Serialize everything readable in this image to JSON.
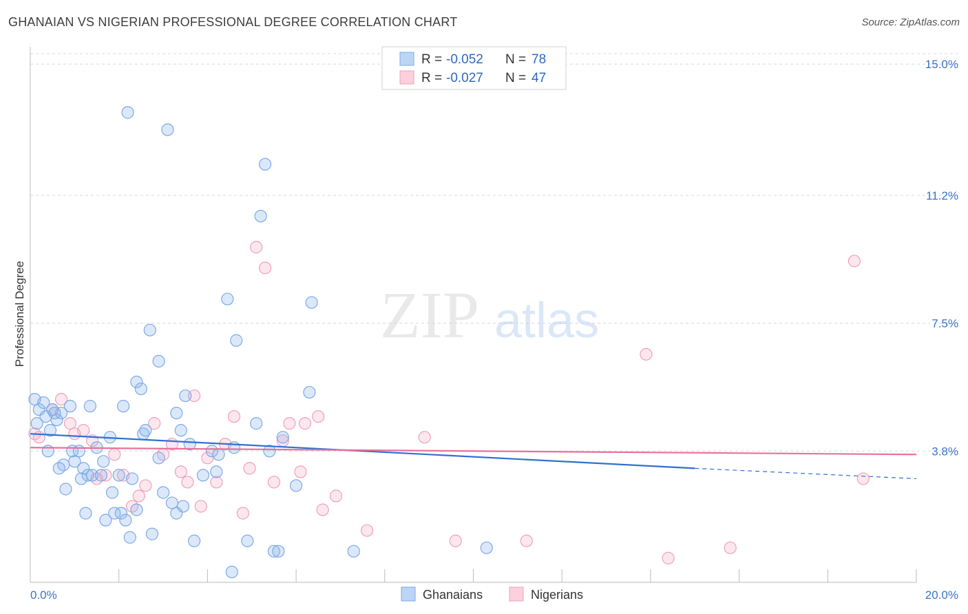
{
  "title": "GHANAIAN VS NIGERIAN PROFESSIONAL DEGREE CORRELATION CHART",
  "source": "Source: ZipAtlas.com",
  "watermark": {
    "zip": "ZIP",
    "atlas": "atlas"
  },
  "legend_top": {
    "rows": [
      {
        "r_label": "R =",
        "r_value": "-0.052",
        "n_label": "N =",
        "n_value": "78"
      },
      {
        "r_label": "R =",
        "r_value": "-0.027",
        "n_label": "N =",
        "n_value": "47"
      }
    ]
  },
  "chart_data": {
    "type": "scatter",
    "title": "GHANAIAN VS NIGERIAN PROFESSIONAL DEGREE CORRELATION CHART",
    "xlabel": "",
    "ylabel": "Professional Degree",
    "xlim": [
      0,
      20
    ],
    "ylim": [
      0,
      15.5
    ],
    "x_tick_labels": [
      {
        "value": 0,
        "label": "0.0%"
      },
      {
        "value": 20,
        "label": "20.0%"
      }
    ],
    "y_tick_labels": [
      {
        "value": 3.8,
        "label": "3.8%"
      },
      {
        "value": 7.5,
        "label": "7.5%"
      },
      {
        "value": 11.2,
        "label": "11.2%"
      },
      {
        "value": 15.0,
        "label": "15.0%"
      }
    ],
    "grid": true,
    "colors": {
      "ghanaians": "#7aaae8",
      "nigerians": "#f0a0b8",
      "ghanaians_line": "#2f6fd0",
      "nigerians_line": "#e8709a",
      "tick_text": "#3b73c9"
    },
    "series": [
      {
        "name": "Ghanaians",
        "r": -0.052,
        "n": 78,
        "trend": {
          "x0": 0,
          "y0": 4.3,
          "x1": 15,
          "y1": 3.3,
          "x_dash_end": 20,
          "y_dash_end": 3.0
        },
        "points": [
          [
            0.1,
            5.3
          ],
          [
            0.2,
            5.0
          ],
          [
            0.3,
            5.2
          ],
          [
            0.35,
            4.8
          ],
          [
            0.4,
            3.8
          ],
          [
            0.45,
            4.4
          ],
          [
            0.5,
            5.0
          ],
          [
            0.6,
            4.7
          ],
          [
            0.7,
            4.9
          ],
          [
            0.75,
            3.4
          ],
          [
            0.8,
            2.7
          ],
          [
            0.9,
            5.1
          ],
          [
            0.95,
            3.8
          ],
          [
            1.0,
            3.5
          ],
          [
            1.1,
            3.8
          ],
          [
            1.2,
            3.3
          ],
          [
            1.25,
            2.0
          ],
          [
            1.3,
            3.1
          ],
          [
            1.35,
            5.1
          ],
          [
            1.4,
            3.1
          ],
          [
            1.5,
            3.9
          ],
          [
            1.6,
            3.1
          ],
          [
            1.65,
            3.5
          ],
          [
            1.7,
            1.8
          ],
          [
            1.8,
            4.2
          ],
          [
            1.85,
            2.6
          ],
          [
            1.9,
            2.0
          ],
          [
            2.0,
            3.1
          ],
          [
            2.05,
            2.0
          ],
          [
            2.1,
            5.1
          ],
          [
            2.15,
            1.8
          ],
          [
            2.2,
            13.6
          ],
          [
            2.25,
            1.3
          ],
          [
            2.4,
            2.1
          ],
          [
            2.4,
            5.8
          ],
          [
            2.5,
            5.6
          ],
          [
            2.55,
            4.3
          ],
          [
            2.6,
            4.4
          ],
          [
            2.7,
            7.3
          ],
          [
            2.75,
            1.4
          ],
          [
            2.9,
            6.4
          ],
          [
            2.9,
            3.6
          ],
          [
            3.0,
            2.6
          ],
          [
            3.1,
            13.1
          ],
          [
            3.2,
            2.3
          ],
          [
            3.3,
            2.0
          ],
          [
            3.3,
            4.9
          ],
          [
            3.4,
            4.4
          ],
          [
            3.45,
            2.2
          ],
          [
            3.5,
            5.4
          ],
          [
            3.6,
            4.0
          ],
          [
            3.7,
            1.2
          ],
          [
            3.9,
            3.1
          ],
          [
            4.1,
            3.8
          ],
          [
            4.2,
            3.2
          ],
          [
            4.25,
            3.7
          ],
          [
            4.45,
            8.2
          ],
          [
            4.55,
            0.3
          ],
          [
            4.6,
            3.9
          ],
          [
            4.65,
            7.0
          ],
          [
            4.9,
            1.2
          ],
          [
            5.1,
            4.6
          ],
          [
            5.2,
            10.6
          ],
          [
            5.3,
            12.1
          ],
          [
            5.4,
            3.8
          ],
          [
            5.5,
            0.9
          ],
          [
            5.6,
            0.9
          ],
          [
            5.7,
            4.2
          ],
          [
            6.0,
            2.8
          ],
          [
            6.3,
            5.5
          ],
          [
            6.35,
            8.1
          ],
          [
            7.3,
            0.9
          ],
          [
            10.3,
            1.0
          ],
          [
            0.15,
            4.6
          ],
          [
            0.55,
            4.9
          ],
          [
            0.65,
            3.3
          ],
          [
            1.15,
            3.0
          ],
          [
            2.3,
            3.0
          ]
        ]
      },
      {
        "name": "Nigerians",
        "r": -0.027,
        "n": 47,
        "trend": {
          "x0": 0,
          "y0": 3.9,
          "x1": 20,
          "y1": 3.7
        },
        "points": [
          [
            0.1,
            4.3
          ],
          [
            0.2,
            4.2
          ],
          [
            0.5,
            5.0
          ],
          [
            0.7,
            5.3
          ],
          [
            0.9,
            4.6
          ],
          [
            1.0,
            4.3
          ],
          [
            1.2,
            4.4
          ],
          [
            1.4,
            4.1
          ],
          [
            1.5,
            3.0
          ],
          [
            1.7,
            3.1
          ],
          [
            1.9,
            3.7
          ],
          [
            2.1,
            3.1
          ],
          [
            2.3,
            2.2
          ],
          [
            2.45,
            2.5
          ],
          [
            2.6,
            2.8
          ],
          [
            2.8,
            4.6
          ],
          [
            3.0,
            3.7
          ],
          [
            3.2,
            4.0
          ],
          [
            3.4,
            3.2
          ],
          [
            3.55,
            2.9
          ],
          [
            3.7,
            5.4
          ],
          [
            3.85,
            2.2
          ],
          [
            4.0,
            3.6
          ],
          [
            4.2,
            2.9
          ],
          [
            4.4,
            4.0
          ],
          [
            4.6,
            4.8
          ],
          [
            4.8,
            2.0
          ],
          [
            4.95,
            3.3
          ],
          [
            5.1,
            9.7
          ],
          [
            5.3,
            9.1
          ],
          [
            5.5,
            2.9
          ],
          [
            5.7,
            4.1
          ],
          [
            5.85,
            4.6
          ],
          [
            6.1,
            3.2
          ],
          [
            6.2,
            4.6
          ],
          [
            6.5,
            4.8
          ],
          [
            6.6,
            2.1
          ],
          [
            6.9,
            2.5
          ],
          [
            7.6,
            1.5
          ],
          [
            8.9,
            4.2
          ],
          [
            9.6,
            1.2
          ],
          [
            11.2,
            1.2
          ],
          [
            13.9,
            6.6
          ],
          [
            14.4,
            0.7
          ],
          [
            15.8,
            1.0
          ],
          [
            18.6,
            9.3
          ],
          [
            18.8,
            3.0
          ]
        ]
      }
    ]
  },
  "bottom_legend": {
    "items": [
      {
        "label": "Ghanaians"
      },
      {
        "label": "Nigerians"
      }
    ]
  }
}
